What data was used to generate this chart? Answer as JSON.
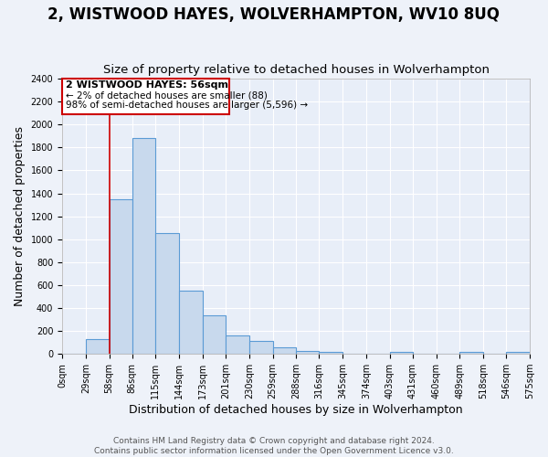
{
  "title": "2, WISTWOOD HAYES, WOLVERHAMPTON, WV10 8UQ",
  "subtitle": "Size of property relative to detached houses in Wolverhampton",
  "xlabel": "Distribution of detached houses by size in Wolverhampton",
  "ylabel": "Number of detached properties",
  "footer_line1": "Contains HM Land Registry data © Crown copyright and database right 2024.",
  "footer_line2": "Contains public sector information licensed under the Open Government Licence v3.0.",
  "bin_edges": [
    0,
    29,
    58,
    86,
    115,
    144,
    173,
    201,
    230,
    259,
    288,
    316,
    345,
    374,
    403,
    431,
    460,
    489,
    518,
    546,
    575
  ],
  "bin_labels": [
    "0sqm",
    "29sqm",
    "58sqm",
    "86sqm",
    "115sqm",
    "144sqm",
    "173sqm",
    "201sqm",
    "230sqm",
    "259sqm",
    "288sqm",
    "316sqm",
    "345sqm",
    "374sqm",
    "403sqm",
    "431sqm",
    "460sqm",
    "489sqm",
    "518sqm",
    "546sqm",
    "575sqm"
  ],
  "counts": [
    0,
    130,
    1350,
    1880,
    1050,
    550,
    340,
    165,
    110,
    60,
    25,
    20,
    0,
    0,
    20,
    0,
    0,
    20,
    0,
    20
  ],
  "bar_color": "#c8d9ed",
  "bar_edge_color": "#5b9bd5",
  "vline_x": 58,
  "vline_color": "#cc0000",
  "annotation_title": "2 WISTWOOD HAYES: 56sqm",
  "annotation_line1": "← 2% of detached houses are smaller (88)",
  "annotation_line2": "98% of semi-detached houses are larger (5,596) →",
  "annotation_box_edge_color": "#cc0000",
  "ylim": [
    0,
    2400
  ],
  "yticks": [
    0,
    200,
    400,
    600,
    800,
    1000,
    1200,
    1400,
    1600,
    1800,
    2000,
    2200,
    2400
  ],
  "background_color": "#eef2f9",
  "plot_bg_color": "#e8eef8",
  "grid_color": "#ffffff",
  "title_fontsize": 12,
  "subtitle_fontsize": 9.5,
  "axis_label_fontsize": 9,
  "tick_fontsize": 7,
  "footer_fontsize": 6.5
}
